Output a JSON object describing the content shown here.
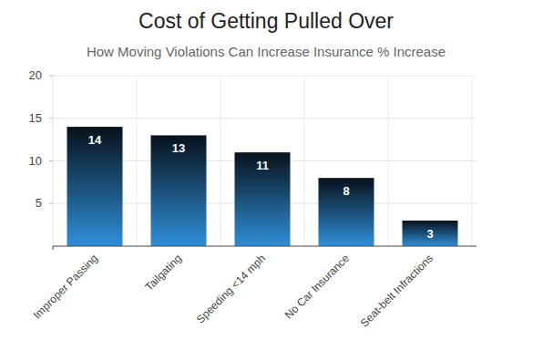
{
  "chart_data": {
    "type": "bar",
    "title": "Cost of Getting Pulled Over",
    "subtitle": "How Moving Violations Can Increase Insurance % Increase",
    "categories": [
      "Improper Passing",
      "Tailgating",
      "Speeding <14 mph",
      "No Car Insurance",
      "Seat-belt Infractions"
    ],
    "values": [
      14,
      13,
      11,
      8,
      3
    ],
    "color": "#2f8fd8",
    "ylim": [
      0,
      20
    ],
    "yticks": [
      5,
      10,
      15,
      20
    ],
    "grid": true,
    "data_labels": true
  }
}
